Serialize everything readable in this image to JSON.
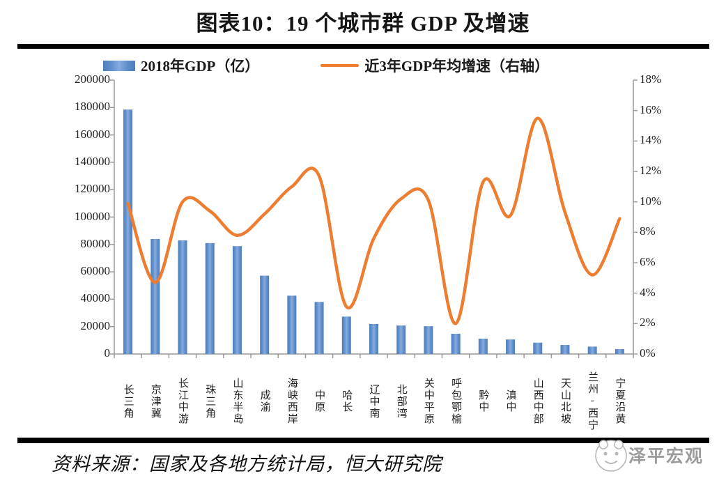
{
  "title": "图表10：19 个城市群 GDP 及增速",
  "legend": {
    "bar_label": "2018年GDP（亿）",
    "line_label": "近3年GDP年均增速（右轴）"
  },
  "footer": {
    "source": "资料来源：国家及各地方统计局，恒大研究院",
    "watermark": "泽平宏观"
  },
  "colors": {
    "bar_edge": "#4E7EBB",
    "bar_mid": "#86ABDF",
    "line": "#ED7D31",
    "axis": "#9a9a9a",
    "tick_text": "#1f1f1f",
    "rule": "#000000",
    "watermark_text": "#9b9b9b"
  },
  "chart_data": {
    "type": "bar",
    "subtype": "bar+line combo",
    "title": "图表10：19 个城市群 GDP 及增速",
    "categories": [
      "长三角",
      "京津冀",
      "长江中游",
      "珠三角",
      "山东半岛",
      "成渝",
      "海峡西岸",
      "中原",
      "哈长",
      "辽中南",
      "北部湾",
      "关中平原",
      "呼包鄂榆",
      "黔中",
      "滇中",
      "山西中部",
      "天山北坡",
      "兰州-西宁",
      "宁夏沿黄"
    ],
    "series": [
      {
        "name": "2018年GDP（亿）",
        "type": "bar",
        "axis": "left",
        "values": [
          178500,
          84000,
          83000,
          81000,
          78800,
          57200,
          42600,
          38000,
          27300,
          21900,
          20800,
          20300,
          14800,
          11200,
          10600,
          8300,
          6600,
          5400,
          3600
        ]
      },
      {
        "name": "近3年GDP年均增速（右轴）",
        "type": "line",
        "axis": "right",
        "unit": "%",
        "values": [
          9.9,
          4.7,
          10.0,
          9.4,
          7.8,
          9.2,
          11.0,
          11.7,
          3.1,
          7.6,
          10.2,
          10.1,
          2.0,
          11.3,
          9.1,
          15.5,
          9.3,
          5.2,
          8.9
        ]
      }
    ],
    "left_axis": {
      "min": 0,
      "max": 200000,
      "step": 20000
    },
    "right_axis": {
      "min": 0,
      "max": 18,
      "step": 2,
      "suffix": "%"
    },
    "grid": false,
    "legend_position": "top",
    "line_smooth": true
  }
}
